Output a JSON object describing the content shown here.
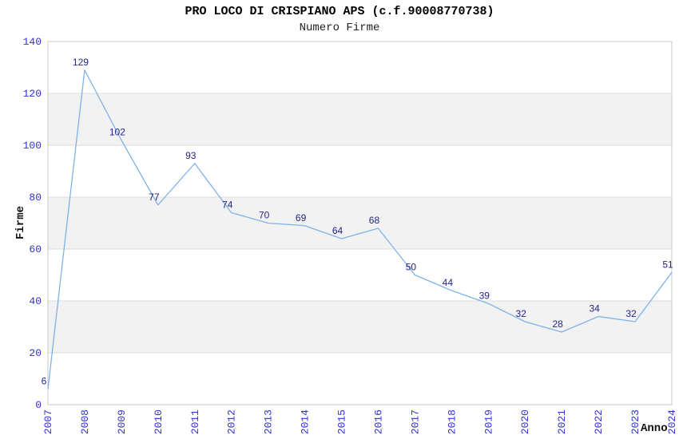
{
  "chart_data": {
    "type": "line",
    "title": "PRO LOCO DI CRISPIANO APS (c.f.90008770738)",
    "subtitle": "Numero Firme",
    "xlabel": "Anno",
    "ylabel": "Firme",
    "categories": [
      "2007",
      "2008",
      "2009",
      "2010",
      "2011",
      "2012",
      "2013",
      "2014",
      "2015",
      "2016",
      "2017",
      "2018",
      "2019",
      "2020",
      "2021",
      "2022",
      "2023",
      "2024"
    ],
    "values": [
      6,
      129,
      102,
      77,
      93,
      74,
      70,
      69,
      64,
      68,
      50,
      44,
      39,
      32,
      28,
      34,
      32,
      51
    ],
    "ylim": [
      0,
      140
    ],
    "yticks": [
      0,
      20,
      40,
      60,
      80,
      100,
      120,
      140
    ],
    "grid": true,
    "legend": false,
    "band_ranges": [
      [
        20,
        40
      ],
      [
        60,
        80
      ],
      [
        100,
        120
      ]
    ],
    "colors": {
      "line": "#7EB2E8",
      "value_label": "#232388",
      "tick_label": "#3232CC",
      "gridline": "#DCDCDC",
      "band": "#F2F2F2",
      "plot_border": "#C9C9C9",
      "title": "#000000",
      "subtitle": "#222222",
      "axis_title": "#111111",
      "background": "#FFFFFF"
    }
  }
}
